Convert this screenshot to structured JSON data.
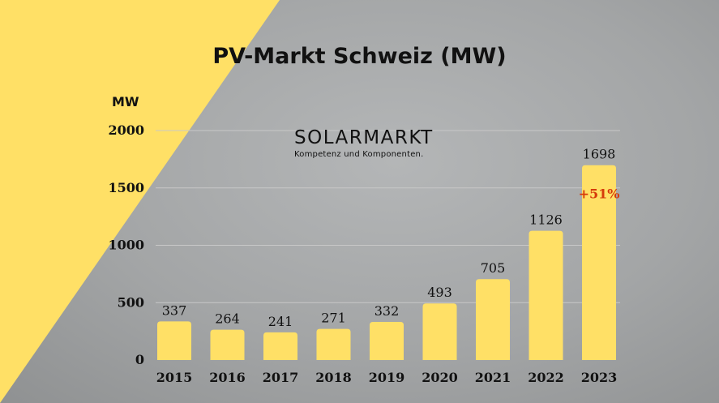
{
  "page": {
    "title": "PV-Markt Schweiz (MW)",
    "unit_label": "MW"
  },
  "logo": {
    "name": "SOLARMARKT",
    "tagline": "Kompetenz und Komponenten."
  },
  "colors": {
    "bar": "#ffe066",
    "yellow_triangle": "#ffe066",
    "growth_label": "#d63a0a",
    "text": "#111111",
    "gridline": "#c8c8c8"
  },
  "chart_data": {
    "type": "bar",
    "categories": [
      "2015",
      "2016",
      "2017",
      "2018",
      "2019",
      "2020",
      "2021",
      "2022",
      "2023"
    ],
    "values": [
      337,
      264,
      241,
      271,
      332,
      493,
      705,
      1126,
      1698
    ],
    "data_labels": [
      "337",
      "264",
      "241",
      "271",
      "332",
      "493",
      "705",
      "1126",
      "1698"
    ],
    "title": "PV-Markt Schweiz (MW)",
    "ylabel": "MW",
    "ylim": [
      0,
      2000
    ],
    "yticks": [
      "0",
      "500",
      "1000",
      "1500",
      "2000"
    ],
    "grid": true,
    "annotations": [
      {
        "category": "2023",
        "text": "+51%"
      }
    ]
  }
}
